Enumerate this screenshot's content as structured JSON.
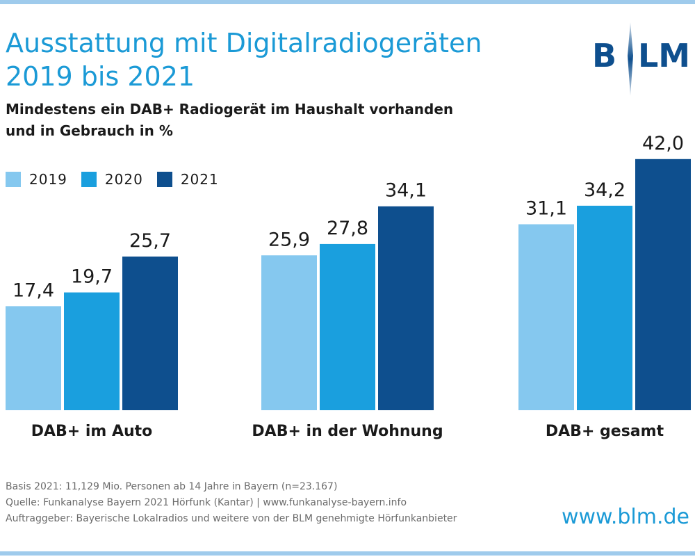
{
  "header": {
    "title_line1": "Ausstattung mit Digitalradiogeräten",
    "title_line2": "2019 bis 2021",
    "subtitle_line1": "Mindestens ein DAB+ Radiogerät im Haushalt vorhanden",
    "subtitle_line2": "und in Gebrauch in %",
    "logo_text": "BLM"
  },
  "colors": {
    "2019": "#85c8ef",
    "2020": "#1a9fde",
    "2021": "#0e4f8e",
    "title": "#1b9ad6",
    "rule": "#9fcbec"
  },
  "legend": [
    {
      "label": "2019",
      "color": "#85c8ef"
    },
    {
      "label": "2020",
      "color": "#1a9fde"
    },
    {
      "label": "2021",
      "color": "#0e4f8e"
    }
  ],
  "chart_data": {
    "type": "bar",
    "title": "Ausstattung mit Digitalradiogeräten 2019 bis 2021",
    "ylabel": "",
    "xlabel": "",
    "ylim": [
      0,
      45
    ],
    "grid": false,
    "legend_position": "top-left",
    "categories": [
      "DAB+ im Auto",
      "DAB+ in der Wohnung",
      "DAB+ gesamt"
    ],
    "series": [
      {
        "name": "2019",
        "values": [
          17.4,
          25.9,
          31.1
        ],
        "labels": [
          "17,4",
          "25,9",
          "31,1"
        ]
      },
      {
        "name": "2020",
        "values": [
          19.7,
          27.8,
          34.2
        ],
        "labels": [
          "19,7",
          "27,8",
          "34,2"
        ]
      },
      {
        "name": "2021",
        "values": [
          25.7,
          34.1,
          42.0
        ],
        "labels": [
          "25,7",
          "34,1",
          "42,0"
        ]
      }
    ]
  },
  "footer": {
    "basis": "Basis 2021: 11,129 Mio. Personen ab 14 Jahre in Bayern (n=23.167)",
    "quelle": "Quelle: Funkanalyse Bayern 2021 Hörfunk (Kantar) | www.funkanalyse-bayern.info",
    "auftraggeber": "Auftraggeber: Bayerische Lokalradios und weitere von der BLM genehmigte Hörfunkanbieter",
    "url": "www.blm.de"
  }
}
